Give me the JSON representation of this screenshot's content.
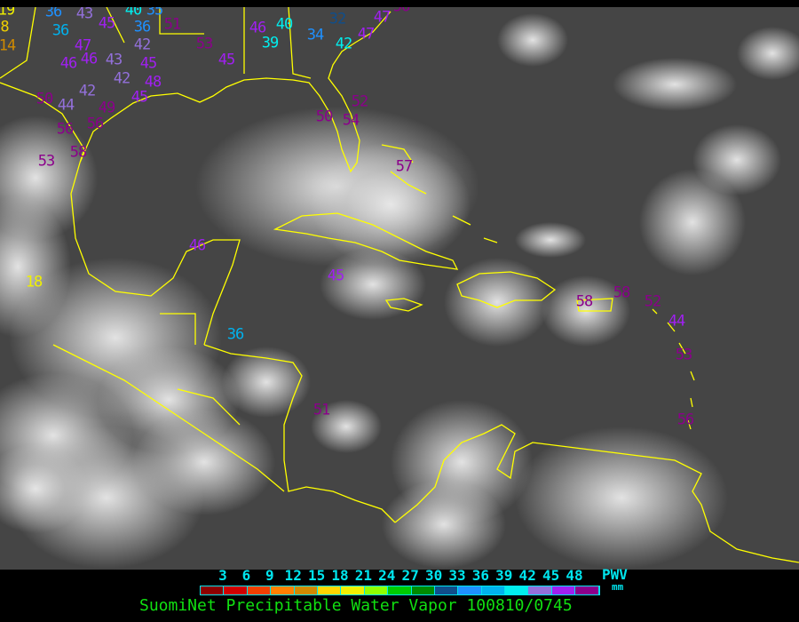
{
  "image": {
    "title": "SuomiNet Precipitable Water Vapor 100810/0745",
    "colors": {
      "background": "#000000",
      "coastline": "#ffff00",
      "title_text": "#11e011",
      "legend_text": "#00e5ee"
    }
  },
  "legend": {
    "unit_label": "PWV",
    "unit": "mm",
    "ticks": [
      "3",
      "6",
      "9",
      "12",
      "15",
      "18",
      "21",
      "24",
      "27",
      "30",
      "33",
      "36",
      "39",
      "42",
      "45",
      "48"
    ],
    "colors": [
      "#8b0000",
      "#d00000",
      "#f04000",
      "#ff8000",
      "#d08a00",
      "#ffd700",
      "#f0f000",
      "#90ff00",
      "#00cc00",
      "#008b00",
      "#104e8b",
      "#1e90ff",
      "#00b2ee",
      "#00eeee",
      "#9370db",
      "#a020f0",
      "#8b008b"
    ]
  },
  "stations": [
    {
      "value": "19",
      "color": "#f0f000"
    },
    {
      "value": "8",
      "color": "#f0d000"
    },
    {
      "value": "14",
      "color": "#d08a00"
    },
    {
      "value": "36",
      "color": "#1e90ff"
    },
    {
      "value": "43",
      "color": "#9370db"
    },
    {
      "value": "45",
      "color": "#a020f0"
    },
    {
      "value": "40",
      "color": "#00eeee"
    },
    {
      "value": "35",
      "color": "#1e90ff"
    },
    {
      "value": "36",
      "color": "#1e90ff"
    },
    {
      "value": "51",
      "color": "#8b008b"
    },
    {
      "value": "36",
      "color": "#00b2ee"
    },
    {
      "value": "47",
      "color": "#a020f0"
    },
    {
      "value": "46",
      "color": "#a020f0"
    },
    {
      "value": "46",
      "color": "#a020f0"
    },
    {
      "value": "43",
      "color": "#9370db"
    },
    {
      "value": "42",
      "color": "#9370db"
    },
    {
      "value": "45",
      "color": "#a020f0"
    },
    {
      "value": "42",
      "color": "#9370db"
    },
    {
      "value": "48",
      "color": "#a020f0"
    },
    {
      "value": "53",
      "color": "#8b008b"
    },
    {
      "value": "45",
      "color": "#a020f0"
    },
    {
      "value": "50",
      "color": "#8b008b"
    },
    {
      "value": "44",
      "color": "#9370db"
    },
    {
      "value": "42",
      "color": "#9370db"
    },
    {
      "value": "49",
      "color": "#8b008b"
    },
    {
      "value": "45",
      "color": "#a020f0"
    },
    {
      "value": "56",
      "color": "#8b008b"
    },
    {
      "value": "56",
      "color": "#8b008b"
    },
    {
      "value": "58",
      "color": "#8b008b"
    },
    {
      "value": "53",
      "color": "#8b008b"
    },
    {
      "value": "46",
      "color": "#a020f0"
    },
    {
      "value": "40",
      "color": "#00eeee"
    },
    {
      "value": "39",
      "color": "#00eeee"
    },
    {
      "value": "34",
      "color": "#1e90ff"
    },
    {
      "value": "32",
      "color": "#104e8b"
    },
    {
      "value": "42",
      "color": "#00eeee"
    },
    {
      "value": "47",
      "color": "#a020f0"
    },
    {
      "value": "47",
      "color": "#a020f0"
    },
    {
      "value": "56",
      "color": "#8b008b"
    },
    {
      "value": "50",
      "color": "#8b008b"
    },
    {
      "value": "52",
      "color": "#8b008b"
    },
    {
      "value": "54",
      "color": "#8b008b"
    },
    {
      "value": "57",
      "color": "#8b008b"
    },
    {
      "value": "46",
      "color": "#a020f0"
    },
    {
      "value": "18",
      "color": "#f0f000"
    },
    {
      "value": "45",
      "color": "#a020f0"
    },
    {
      "value": "36",
      "color": "#00b2ee"
    },
    {
      "value": "51",
      "color": "#8b008b"
    },
    {
      "value": "58",
      "color": "#8b008b"
    },
    {
      "value": "58",
      "color": "#8b008b"
    },
    {
      "value": "52",
      "color": "#8b008b"
    },
    {
      "value": "44",
      "color": "#a020f0"
    },
    {
      "value": "53",
      "color": "#8b008b"
    },
    {
      "value": "56",
      "color": "#8b008b"
    }
  ]
}
